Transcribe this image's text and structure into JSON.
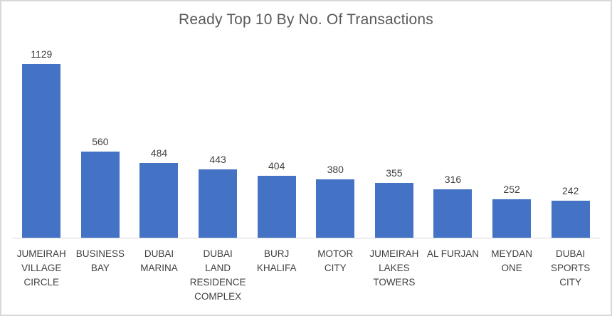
{
  "chart_data": {
    "type": "bar",
    "title": "Ready Top 10 By No. Of Transactions",
    "categories": [
      "JUMEIRAH VILLAGE CIRCLE",
      "BUSINESS BAY",
      "DUBAI MARINA",
      "DUBAI LAND RESIDENCE COMPLEX",
      "BURJ KHALIFA",
      "MOTOR CITY",
      "JUMEIRAH LAKES TOWERS",
      "AL FURJAN",
      "MEYDAN ONE",
      "DUBAI SPORTS CITY"
    ],
    "category_label_lines": [
      [
        "JUMEIRAH",
        "VILLAGE",
        "CIRCLE"
      ],
      [
        "BUSINESS",
        "BAY"
      ],
      [
        "DUBAI",
        "MARINA"
      ],
      [
        "DUBAI",
        "LAND",
        "RESIDENCE",
        "COMPLEX"
      ],
      [
        "BURJ",
        "KHALIFA"
      ],
      [
        "MOTOR",
        "CITY"
      ],
      [
        "JUMEIRAH",
        "LAKES",
        "TOWERS"
      ],
      [
        "AL FURJAN"
      ],
      [
        "MEYDAN",
        "ONE"
      ],
      [
        "DUBAI",
        "SPORTS",
        "CITY"
      ]
    ],
    "values": [
      1129,
      560,
      484,
      443,
      404,
      380,
      355,
      316,
      252,
      242
    ],
    "data_labels_visible": true,
    "legend": "none",
    "y_axis_visible": false,
    "gridlines": false,
    "ylim": [
      0,
      1129
    ],
    "colors": {
      "bar": "#4472C4",
      "title": "#595959",
      "data_label": "#404040",
      "category_label": "#404040",
      "axis_line": "#D9D9D9",
      "chart_border": "#D9D9D9",
      "background": "#FFFFFF"
    }
  }
}
